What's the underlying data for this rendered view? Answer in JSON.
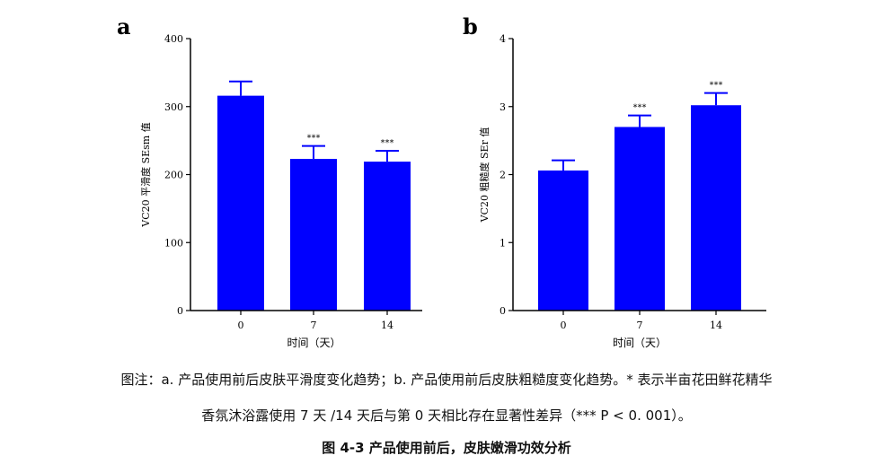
{
  "chart_data": [
    {
      "type": "bar",
      "panel": "a",
      "categories": [
        "0",
        "7",
        "14"
      ],
      "values": [
        316,
        223,
        219
      ],
      "errors": [
        21,
        19,
        16
      ],
      "significance": [
        "",
        "***",
        "***"
      ],
      "yticks": [
        "0",
        "100",
        "200",
        "300",
        "400"
      ],
      "ylim": [
        0,
        400
      ],
      "ylabel": "VC20 平滑度 SEsm 值",
      "xlabel": "时间（天）",
      "color": "#0000ff"
    },
    {
      "type": "bar",
      "panel": "b",
      "categories": [
        "0",
        "7",
        "14"
      ],
      "values": [
        2.06,
        2.7,
        3.02
      ],
      "errors": [
        0.15,
        0.17,
        0.18
      ],
      "significance": [
        "",
        "***",
        "***"
      ],
      "yticks": [
        "0",
        "1",
        "2",
        "3",
        "4"
      ],
      "ylim": [
        0,
        4
      ],
      "ylabel": "VC20 粗糙度 SEr 值",
      "xlabel": "时间（天）",
      "color": "#0000ff"
    }
  ],
  "caption": {
    "note_line1": "图注：a. 产品使用前后皮肤平滑度变化趋势；b. 产品使用前后皮肤粗糙度变化趋势。* 表示半亩花田鲜花精华",
    "note_line2": "香氛沐浴露使用 7 天 /14 天后与第 0 天相比存在显著性差异（*** P < 0. 001）。",
    "figure_title": "图 4-3 产品使用前后，皮肤嫩滑功效分析"
  }
}
